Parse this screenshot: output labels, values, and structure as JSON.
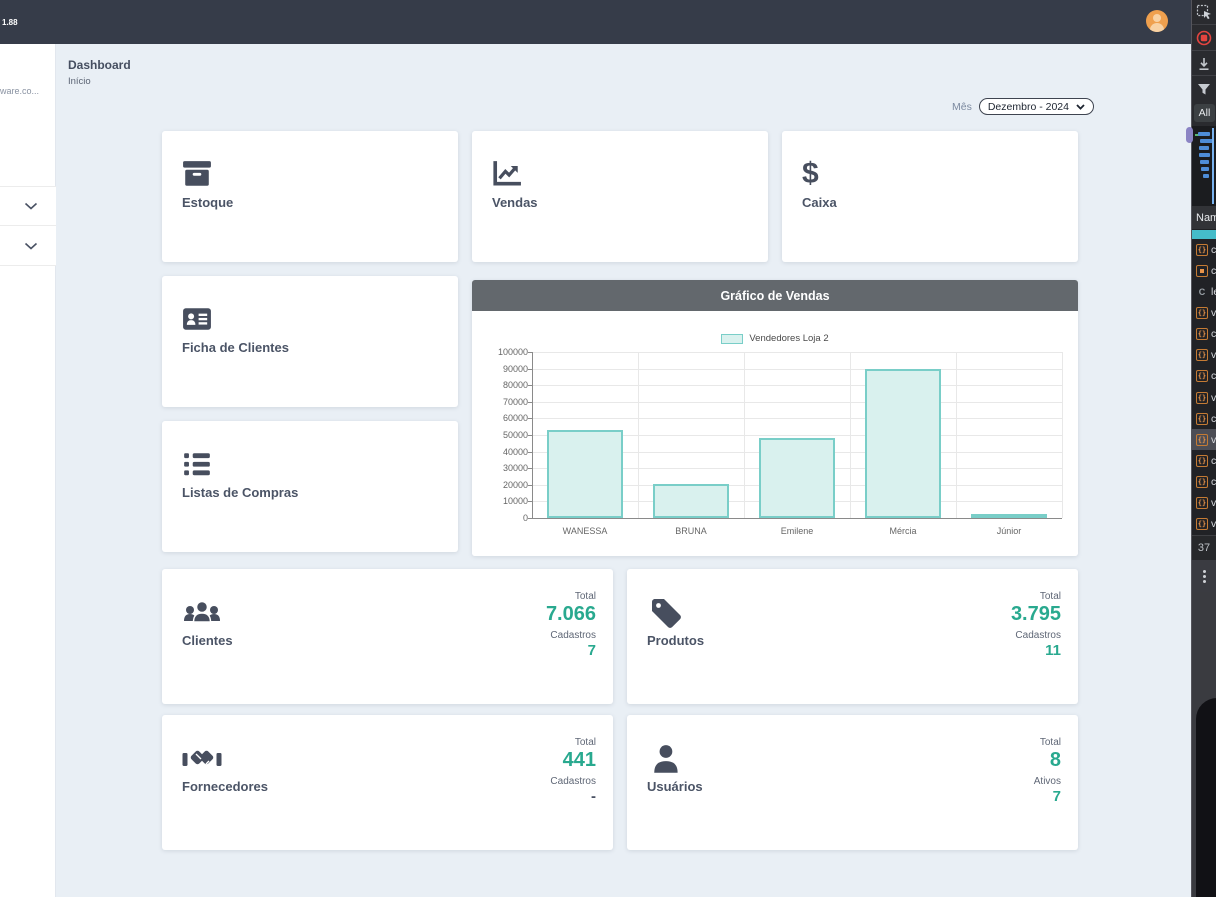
{
  "navbar": {
    "version_label": "1.88"
  },
  "sidebar": {
    "brand": "ware.co..."
  },
  "page": {
    "title": "Dashboard",
    "breadcrumb": "Início"
  },
  "filter": {
    "label": "Mês",
    "value": "Dezembro - 2024"
  },
  "shortcut_cards": [
    {
      "label": "Estoque",
      "icon": "box-archive-icon"
    },
    {
      "label": "Vendas",
      "icon": "chart-line-icon"
    },
    {
      "label": "Caixa",
      "icon": "dollar-icon",
      "glyph": "$"
    },
    {
      "label": "Ficha de Clientes",
      "icon": "id-card-icon"
    },
    {
      "label": "Listas de Compras",
      "icon": "list-icon"
    }
  ],
  "chart_data": {
    "type": "bar",
    "title": "Gráfico de Vendas",
    "legend_label": "Vendedores Loja 2",
    "categories": [
      "WANESSA",
      "BRUNA",
      "Emilene",
      "Mércia",
      "Júnior"
    ],
    "values": [
      53000,
      20500,
      48000,
      89500,
      1500
    ],
    "ylim": [
      0,
      100000
    ],
    "ytick_step": 10000,
    "bar_fill": "#d9f1ee",
    "bar_border": "#79cec8",
    "grid": true,
    "legend_position": "top"
  },
  "stat_cards": [
    {
      "label": "Clientes",
      "icon": "users-icon",
      "metric1_label": "Total",
      "metric1_value": "7.066",
      "metric2_label": "Cadastros",
      "metric2_value": "7"
    },
    {
      "label": "Produtos",
      "icon": "tag-icon",
      "metric1_label": "Total",
      "metric1_value": "3.795",
      "metric2_label": "Cadastros",
      "metric2_value": "11"
    },
    {
      "label": "Fornecedores",
      "icon": "handshake-icon",
      "metric1_label": "Total",
      "metric1_value": "441",
      "metric2_label": "Cadastros",
      "metric2_value": "-"
    },
    {
      "label": "Usuários",
      "icon": "user-icon",
      "metric1_label": "Total",
      "metric1_value": "8",
      "metric2_label": "Ativos",
      "metric2_value": "7"
    }
  ],
  "devtools": {
    "filter_all": "All",
    "name_column": "Nam",
    "request_count": "37",
    "requests": [
      {
        "type": "js",
        "label": "c"
      },
      {
        "type": "img",
        "label": "c"
      },
      {
        "type": "letter",
        "icon_char": "C",
        "label": "le"
      },
      {
        "type": "js",
        "label": "v"
      },
      {
        "type": "js",
        "label": "c"
      },
      {
        "type": "js",
        "label": "v"
      },
      {
        "type": "js",
        "label": "c"
      },
      {
        "type": "js",
        "label": "v"
      },
      {
        "type": "js",
        "label": "c"
      },
      {
        "type": "js",
        "label": "v",
        "highlight": true
      },
      {
        "type": "js",
        "label": "c"
      },
      {
        "type": "js",
        "label": "c"
      },
      {
        "type": "js",
        "label": "v"
      },
      {
        "type": "js",
        "label": "v"
      }
    ]
  }
}
